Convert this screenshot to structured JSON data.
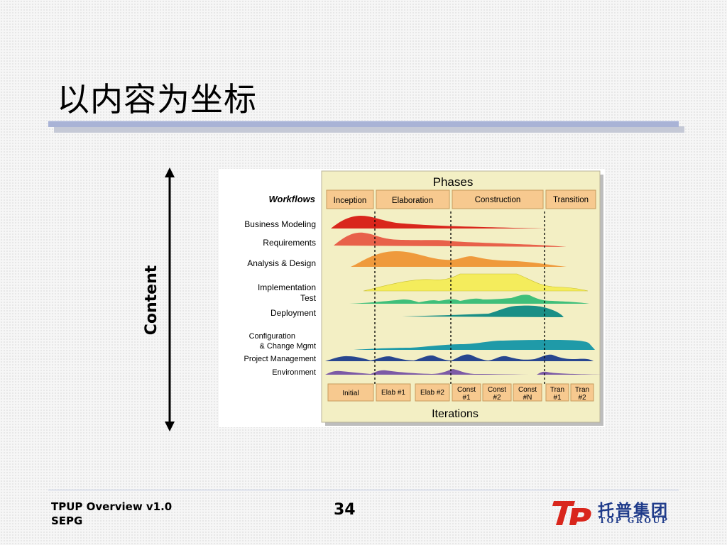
{
  "slide": {
    "title": "以内容为坐标",
    "axis_label": "Content"
  },
  "diagram": {
    "header": "Phases",
    "workflows_label": "Workflows",
    "phases": [
      "Inception",
      "Elaboration",
      "Construction",
      "Transition"
    ],
    "workflows": [
      {
        "label": "Business Modeling",
        "color": "#d9261c"
      },
      {
        "label": "Requirements",
        "color": "#e8614a"
      },
      {
        "label": "Analysis & Design",
        "color": "#ef9a3c"
      },
      {
        "label": "Implementation",
        "color": "#f4ec5c"
      },
      {
        "label": "Test",
        "color": "#3fbf7a"
      },
      {
        "label": "Deployment",
        "color": "#1a8f86"
      },
      {
        "label": "Configuration",
        "color": "#1f9aa8"
      },
      {
        "label": "& Change Mgmt",
        "color": "#1f9aa8"
      },
      {
        "label": "Project Management",
        "color": "#28468f"
      },
      {
        "label": "Environment",
        "color": "#7c5aa6"
      }
    ],
    "iterations": [
      {
        "l1": "Initial",
        "l2": ""
      },
      {
        "l1": "Elab #1",
        "l2": ""
      },
      {
        "l1": "Elab #2",
        "l2": ""
      },
      {
        "l1": "Const",
        "l2": "#1"
      },
      {
        "l1": "Const",
        "l2": "#2"
      },
      {
        "l1": "Const",
        "l2": "#N"
      },
      {
        "l1": "Tran",
        "l2": "#1"
      },
      {
        "l1": "Tran",
        "l2": "#2"
      }
    ],
    "footer": "Iterations",
    "panel_color": "#f3efc4",
    "box_color": "#f7c98f"
  },
  "footer": {
    "line1": "TPUP Overview v1.0",
    "line2": "SEPG",
    "page_number": "34",
    "logo_cn": "托普集团",
    "logo_en": "TOP GROUP",
    "logo_mark": "TP"
  }
}
